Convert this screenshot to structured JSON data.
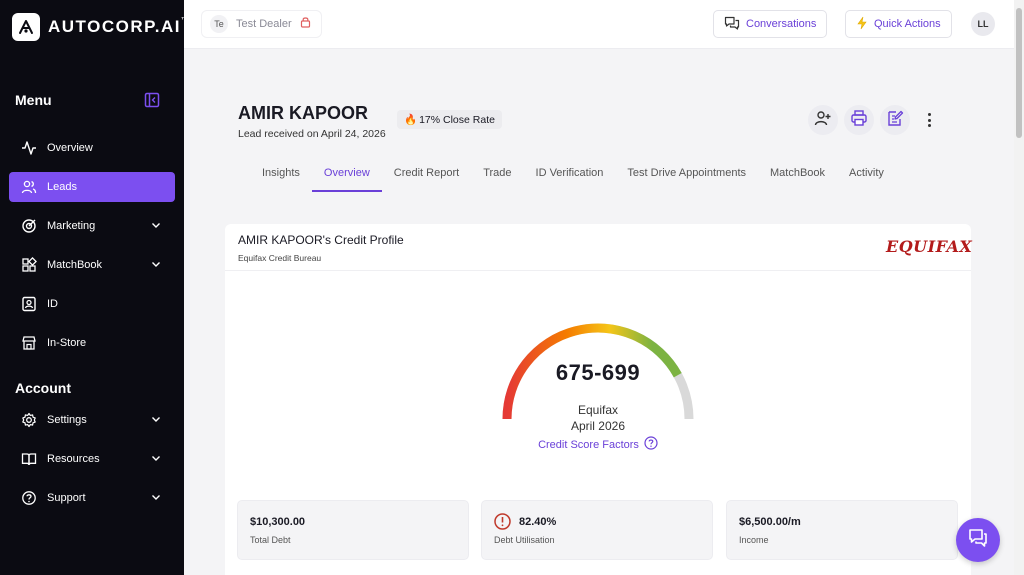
{
  "brand": {
    "name": "AUTOCORP.AI",
    "tm": "™"
  },
  "sidebar": {
    "menu_title": "Menu",
    "items": [
      {
        "label": "Overview",
        "icon": "activity-icon"
      },
      {
        "label": "Leads",
        "icon": "users-icon",
        "active": true
      },
      {
        "label": "Marketing",
        "icon": "target-icon",
        "expandable": true
      },
      {
        "label": "MatchBook",
        "icon": "grid-icon",
        "expandable": true
      },
      {
        "label": "ID",
        "icon": "id-card-icon"
      },
      {
        "label": "In-Store",
        "icon": "store-icon"
      }
    ],
    "account_title": "Account",
    "account_items": [
      {
        "label": "Settings",
        "icon": "gear-icon",
        "expandable": true
      },
      {
        "label": "Resources",
        "icon": "book-icon",
        "expandable": true
      },
      {
        "label": "Support",
        "icon": "help-icon",
        "expandable": true
      }
    ]
  },
  "topbar": {
    "dealer_initials": "Te",
    "dealer_name": "Test Dealer",
    "conversations_label": "Conversations",
    "quick_actions_label": "Quick Actions",
    "user_initials": "LL"
  },
  "lead": {
    "name": "AMIR KAPOOR",
    "received": "Lead received on April 24, 2026",
    "close_rate": "17% Close Rate",
    "close_rate_icon": "🔥"
  },
  "tabs": [
    {
      "label": "Insights"
    },
    {
      "label": "Overview",
      "active": true
    },
    {
      "label": "Credit Report"
    },
    {
      "label": "Trade"
    },
    {
      "label": "ID Verification"
    },
    {
      "label": "Test Drive Appointments"
    },
    {
      "label": "MatchBook"
    },
    {
      "label": "Activity"
    }
  ],
  "credit": {
    "title": "AMIR KAPOOR's Credit Profile",
    "subtitle": "Equifax Credit Bureau",
    "logo_text": "EQUIFAX",
    "score_range": "675-699",
    "bureau": "Equifax",
    "date": "April 2026",
    "factors_label": "Credit Score Factors",
    "gauge_fraction": 0.84
  },
  "stats": [
    {
      "value": "$10,300.00",
      "label": "Total Debt"
    },
    {
      "value": "82.40%",
      "label": "Debt Utilisation",
      "warning": true
    },
    {
      "value": "$6,500.00/m",
      "label": "Income"
    }
  ],
  "colors": {
    "accent": "#7c4ff0",
    "accent_text": "#6a40d8",
    "sidebar_bg": "#0b0b12",
    "warning": "#c0392b"
  }
}
